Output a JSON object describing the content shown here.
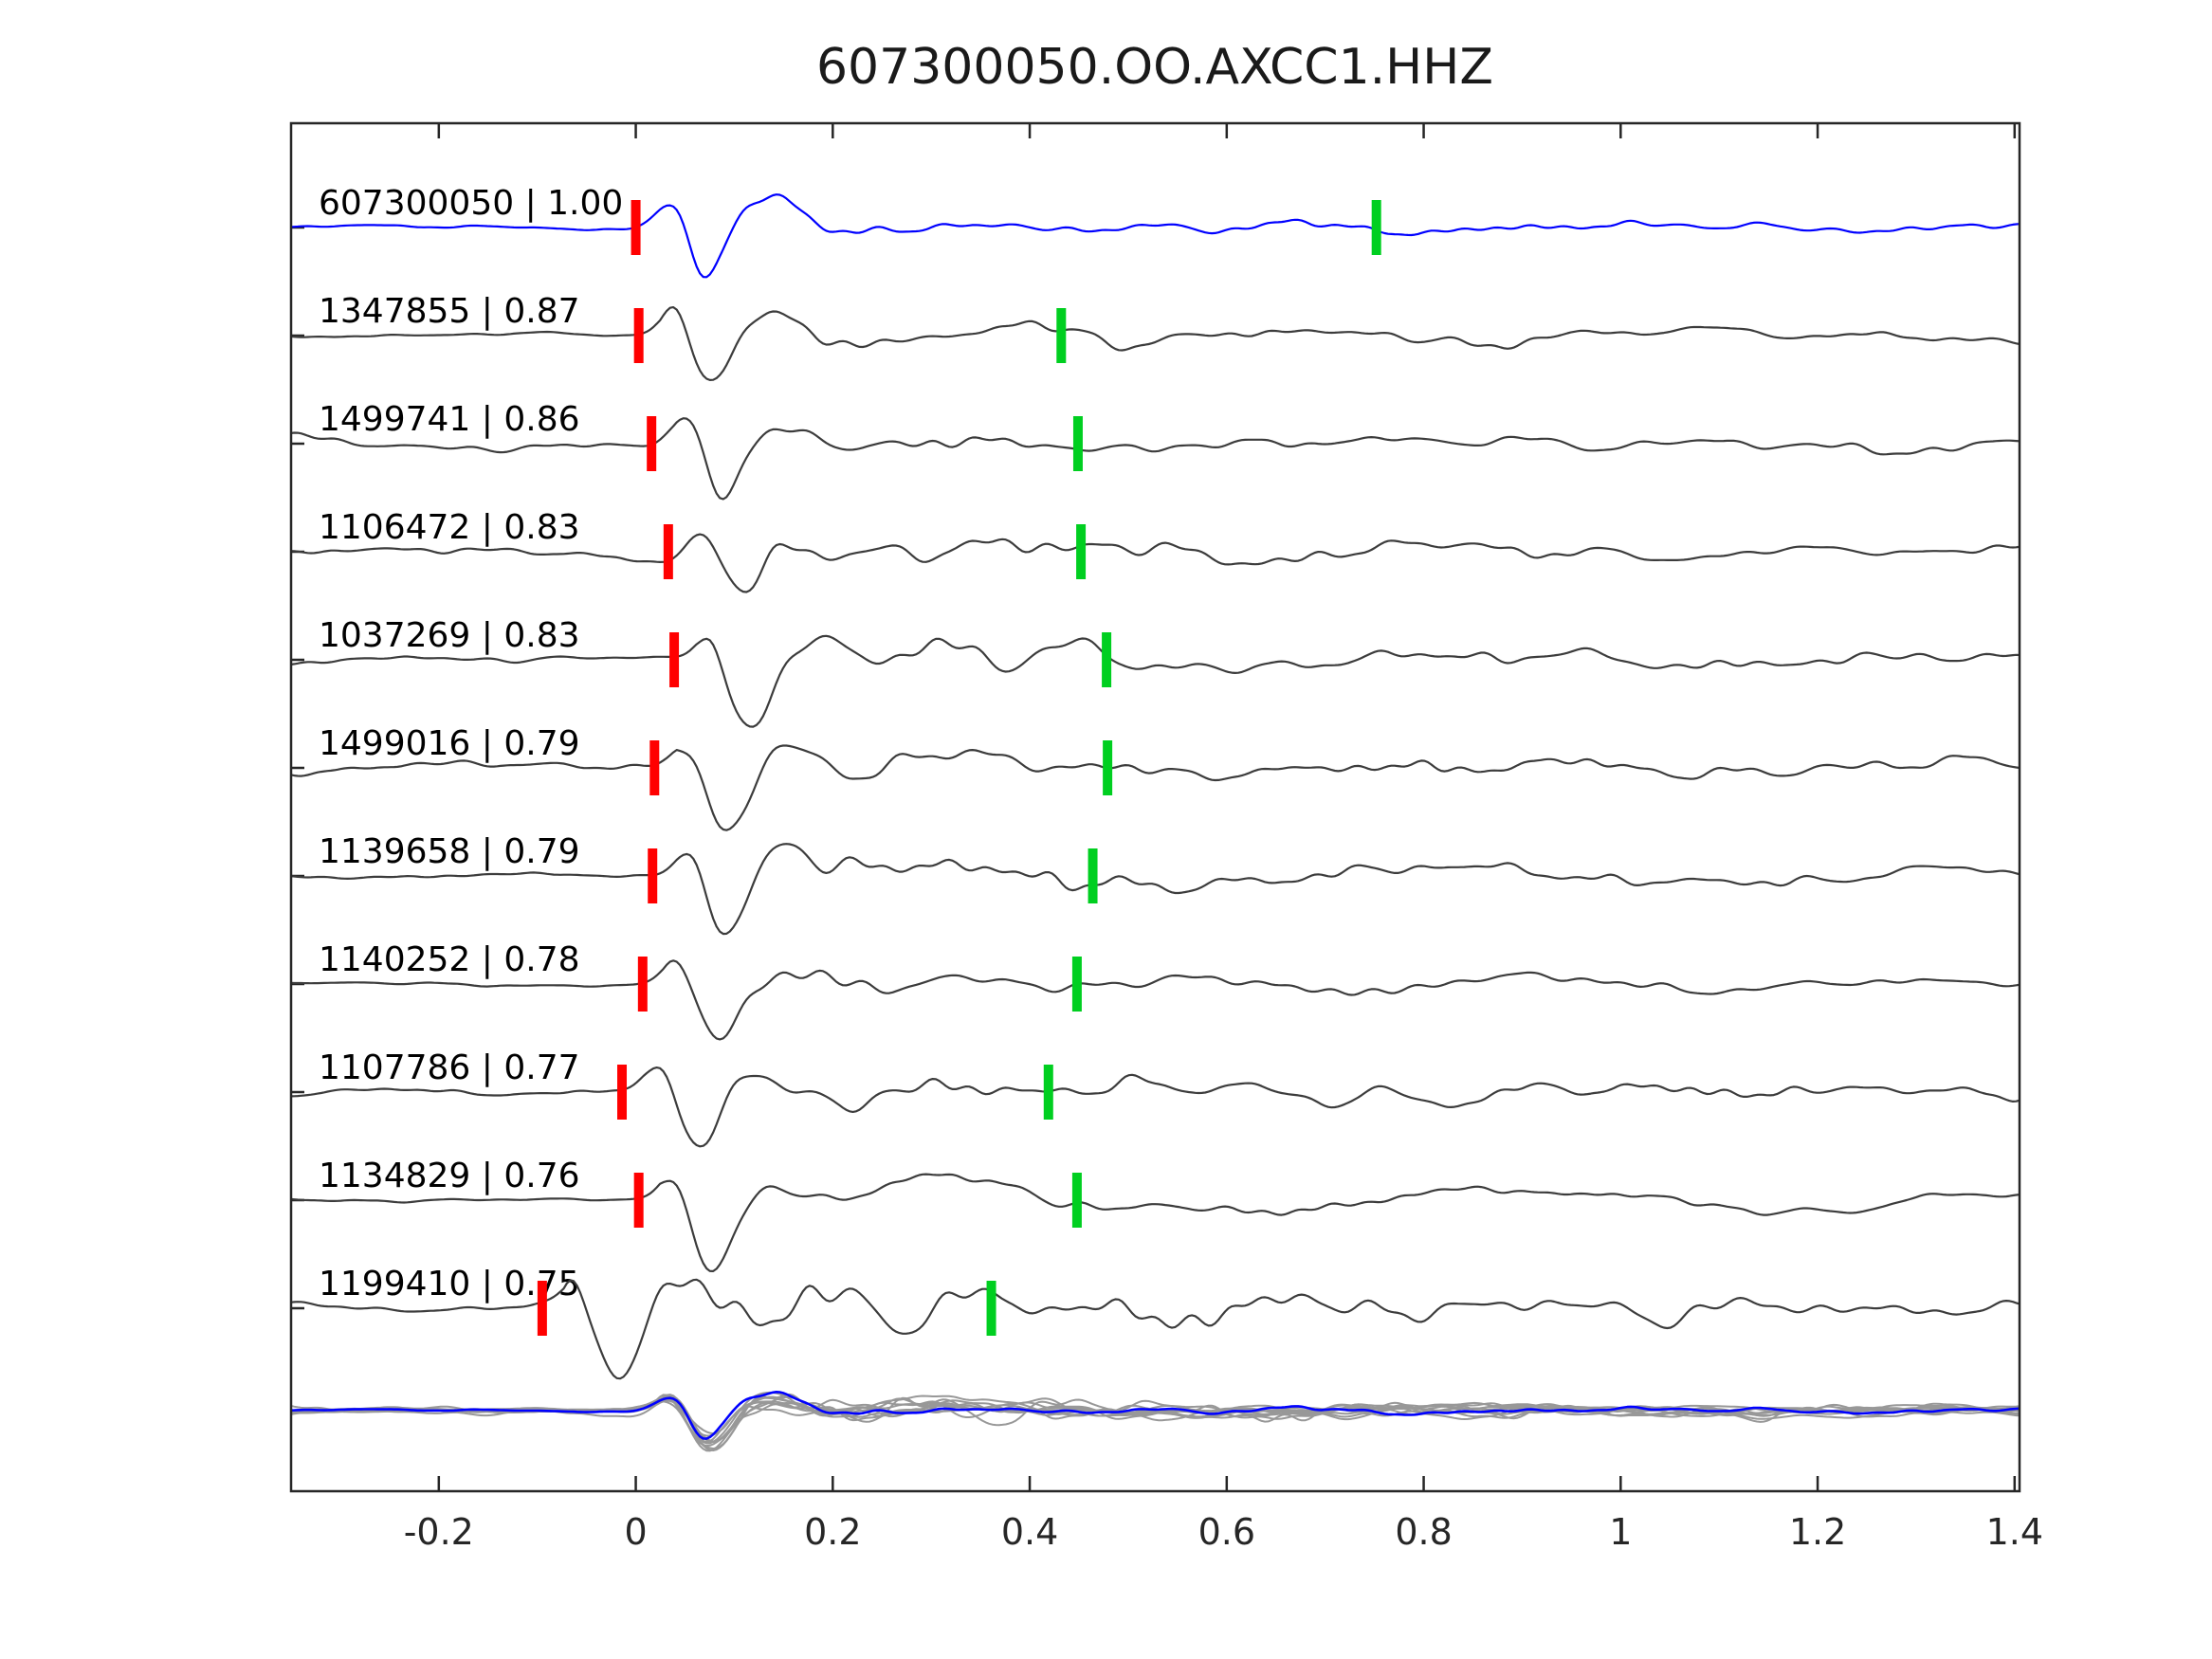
{
  "chart_data": {
    "type": "line",
    "subtype": "seismic-waveform-stack",
    "title": "607300050.OO.AXCC1.HHZ",
    "xlim": [
      -0.35,
      1.405
    ],
    "x_ticks": [
      -0.2,
      0,
      0.2,
      0.4,
      0.6,
      0.8,
      1,
      1.2,
      1.4
    ],
    "x_tick_labels": [
      "-0.2",
      "0",
      "0.2",
      "0.4",
      "0.6",
      "0.8",
      "1",
      "1.2",
      "1.4"
    ],
    "grid": false,
    "legend": "none",
    "frame_color": "#262626",
    "template_color": "#0000ff",
    "trace_color": "#3c3c3c",
    "overlay_color": "#989898",
    "pick_colors": {
      "red": "#ff0000",
      "green": "#00cf20"
    },
    "traces": [
      {
        "id": "607300050",
        "correlation": "1.00",
        "label": "607300050 | 1.00",
        "is_template": true,
        "pick_red": 0.0,
        "pick_green": 0.752
      },
      {
        "id": "1347855",
        "correlation": "0.87",
        "label": "1347855 | 0.87",
        "is_template": false,
        "pick_red": 0.003,
        "pick_green": 0.432
      },
      {
        "id": "1499741",
        "correlation": "0.86",
        "label": "1499741 | 0.86",
        "is_template": false,
        "pick_red": 0.016,
        "pick_green": 0.449
      },
      {
        "id": "1106472",
        "correlation": "0.83",
        "label": "1106472 | 0.83",
        "is_template": false,
        "pick_red": 0.033,
        "pick_green": 0.452
      },
      {
        "id": "1037269",
        "correlation": "0.83",
        "label": "1037269 | 0.83",
        "is_template": false,
        "pick_red": 0.039,
        "pick_green": 0.478
      },
      {
        "id": "1499016",
        "correlation": "0.79",
        "label": "1499016 | 0.79",
        "is_template": false,
        "pick_red": 0.019,
        "pick_green": 0.479
      },
      {
        "id": "1139658",
        "correlation": "0.79",
        "label": "1139658 | 0.79",
        "is_template": false,
        "pick_red": 0.017,
        "pick_green": 0.464
      },
      {
        "id": "1140252",
        "correlation": "0.78",
        "label": "1140252 | 0.78",
        "is_template": false,
        "pick_red": 0.007,
        "pick_green": 0.448
      },
      {
        "id": "1107786",
        "correlation": "0.77",
        "label": "1107786 | 0.77",
        "is_template": false,
        "pick_red": -0.014,
        "pick_green": 0.419
      },
      {
        "id": "1134829",
        "correlation": "0.76",
        "label": "1134829 | 0.76",
        "is_template": false,
        "pick_red": 0.003,
        "pick_green": 0.448
      },
      {
        "id": "1199410",
        "correlation": "0.75",
        "label": "1199410 | 0.75",
        "is_template": false,
        "pick_red": -0.095,
        "pick_green": 0.361
      }
    ],
    "overlay_row": {
      "present": true,
      "description": "all traces time-aligned and overplotted in gray with blue template on top"
    }
  }
}
